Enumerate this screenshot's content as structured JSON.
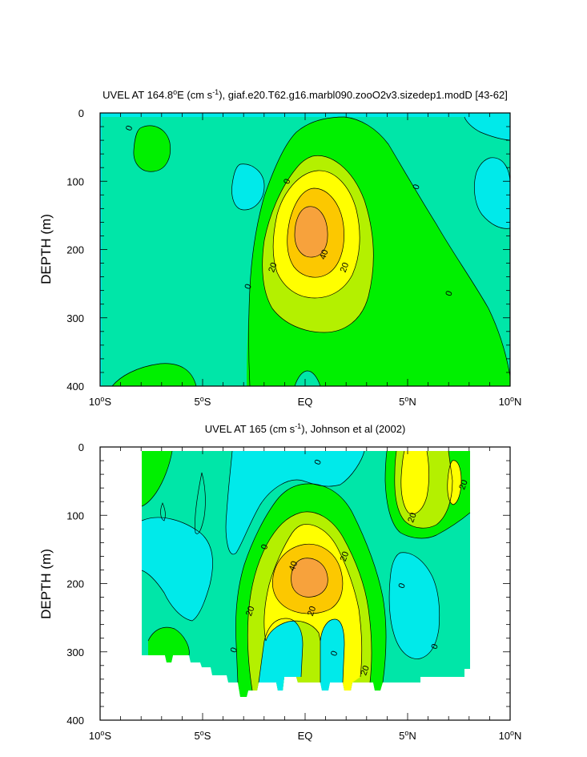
{
  "colors": {
    "level_m10": "#00eaea",
    "level_0": "#00e6a8",
    "level_10": "#00f000",
    "level_20": "#b4f000",
    "level_30": "#ffff00",
    "level_40": "#fcc800",
    "level_50": "#f7a23c",
    "contour_line": "#000000",
    "missing": "#ffffff"
  },
  "chart_data": [
    {
      "type": "heatmap",
      "title_prefix": "UVEL AT 164.8",
      "title_deg": "o",
      "title_mid": "E (cm s",
      "title_exp": "-1",
      "title_suffix": "), giaf.e20.T62.g16.marbl090.zooO2v3.sizedep1.modD [43-62]",
      "ylabel": "DEPTH (m)",
      "xlabel": "",
      "x_ticks": [
        "10°S",
        "5°S",
        "EQ",
        "5°N",
        "10°N"
      ],
      "y_ticks": [
        "0",
        "100",
        "200",
        "300",
        "400"
      ],
      "xlim": [
        -10,
        10
      ],
      "ylim": [
        0,
        400
      ],
      "contour_interval_cm_s": 10,
      "core": {
        "lat": 0.0,
        "depth_m": 180,
        "max_cm_s": 50
      },
      "contour_labels": [
        {
          "text": "0",
          "lat": -8.6,
          "depth": 22
        },
        {
          "text": "0",
          "lat": -0.9,
          "depth": 100
        },
        {
          "text": "0",
          "lat": 5.4,
          "depth": 108
        },
        {
          "text": "0",
          "lat": -2.8,
          "depth": 254
        },
        {
          "text": "0",
          "lat": 7.0,
          "depth": 264
        },
        {
          "text": "20",
          "lat": -1.6,
          "depth": 226
        },
        {
          "text": "40",
          "lat": 0.9,
          "depth": 207
        },
        {
          "text": "20",
          "lat": 1.9,
          "depth": 226
        }
      ]
    },
    {
      "type": "heatmap",
      "title_prefix": "UVEL AT 165 (cm s",
      "title_exp": "-1",
      "title_suffix": "), Johnson et al (2002)",
      "ylabel": "DEPTH (m)",
      "xlabel": "",
      "x_ticks": [
        "10°S",
        "5°S",
        "EQ",
        "5°N",
        "10°N"
      ],
      "y_ticks": [
        "0",
        "100",
        "200",
        "300",
        "400"
      ],
      "xlim": [
        -10,
        10
      ],
      "ylim": [
        0,
        400
      ],
      "data_lat_range": [
        -8,
        8
      ],
      "contour_interval_cm_s": 10,
      "core": {
        "lat": -0.5,
        "depth_m": 185,
        "max_cm_s": 40
      },
      "contour_labels": [
        {
          "text": "0",
          "lat": 0.6,
          "depth": 22
        },
        {
          "text": "20",
          "lat": 7.7,
          "depth": 55
        },
        {
          "text": "20",
          "lat": 5.2,
          "depth": 103
        },
        {
          "text": "0",
          "lat": -2.0,
          "depth": 146
        },
        {
          "text": "20",
          "lat": 1.9,
          "depth": 160
        },
        {
          "text": "40",
          "lat": -0.6,
          "depth": 174
        },
        {
          "text": "0",
          "lat": 4.7,
          "depth": 203
        },
        {
          "text": "20",
          "lat": -2.7,
          "depth": 240
        },
        {
          "text": "20",
          "lat": 0.3,
          "depth": 240
        },
        {
          "text": "0",
          "lat": -3.5,
          "depth": 297
        },
        {
          "text": "0",
          "lat": 1.4,
          "depth": 302
        },
        {
          "text": "20",
          "lat": 2.9,
          "depth": 327
        },
        {
          "text": "0",
          "lat": 6.3,
          "depth": 292
        }
      ]
    }
  ]
}
